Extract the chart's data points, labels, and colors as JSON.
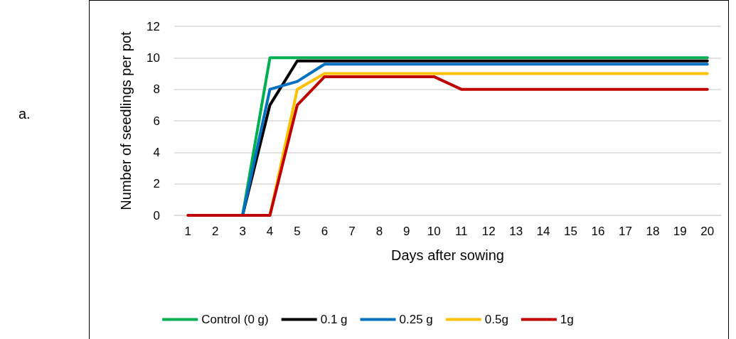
{
  "chart_data": {
    "type": "line",
    "xlabel": "Days after sowing",
    "ylabel": "Number of seedlings per pot",
    "annotations": [
      "a."
    ],
    "categories": [
      "1",
      "2",
      "3",
      "4",
      "5",
      "6",
      "7",
      "8",
      "9",
      "10",
      "11",
      "12",
      "13",
      "14",
      "15",
      "16",
      "17",
      "18",
      "19",
      "20"
    ],
    "ylim": [
      0,
      12
    ],
    "yticks": [
      0,
      2,
      4,
      6,
      8,
      10,
      12
    ],
    "grid": "y",
    "legend": "bottom",
    "marker": "none",
    "line_style": "solid",
    "series": [
      {
        "name": "Control (0 g)",
        "color": "#00b050",
        "values": [
          null,
          null,
          0,
          10,
          10,
          10,
          10,
          10,
          10,
          10,
          10,
          10,
          10,
          10,
          10,
          10,
          10,
          10,
          10,
          10
        ]
      },
      {
        "name": "0.1 g",
        "color": "#000000",
        "values": [
          null,
          null,
          0,
          7,
          9.8,
          9.8,
          9.8,
          9.8,
          9.8,
          9.8,
          9.8,
          9.8,
          9.8,
          9.8,
          9.8,
          9.8,
          9.8,
          9.8,
          9.8,
          9.8
        ]
      },
      {
        "name": "0.25 g",
        "color": "#0070c0",
        "values": [
          null,
          null,
          0,
          8,
          8.5,
          9.6,
          9.6,
          9.6,
          9.6,
          9.6,
          9.6,
          9.6,
          9.6,
          9.6,
          9.6,
          9.6,
          9.6,
          9.6,
          9.6,
          9.6
        ]
      },
      {
        "name": "0.5g",
        "color": "#ffc000",
        "values": [
          null,
          null,
          null,
          0,
          8,
          9,
          9,
          9,
          9,
          9,
          9,
          9,
          9,
          9,
          9,
          9,
          9,
          9,
          9,
          9
        ]
      },
      {
        "name": "1g",
        "color": "#c00000",
        "values": [
          0,
          0,
          0,
          0,
          7,
          8.8,
          8.8,
          8.8,
          8.8,
          8.8,
          8,
          8,
          8,
          8,
          8,
          8,
          8,
          8,
          8,
          8
        ]
      }
    ]
  }
}
